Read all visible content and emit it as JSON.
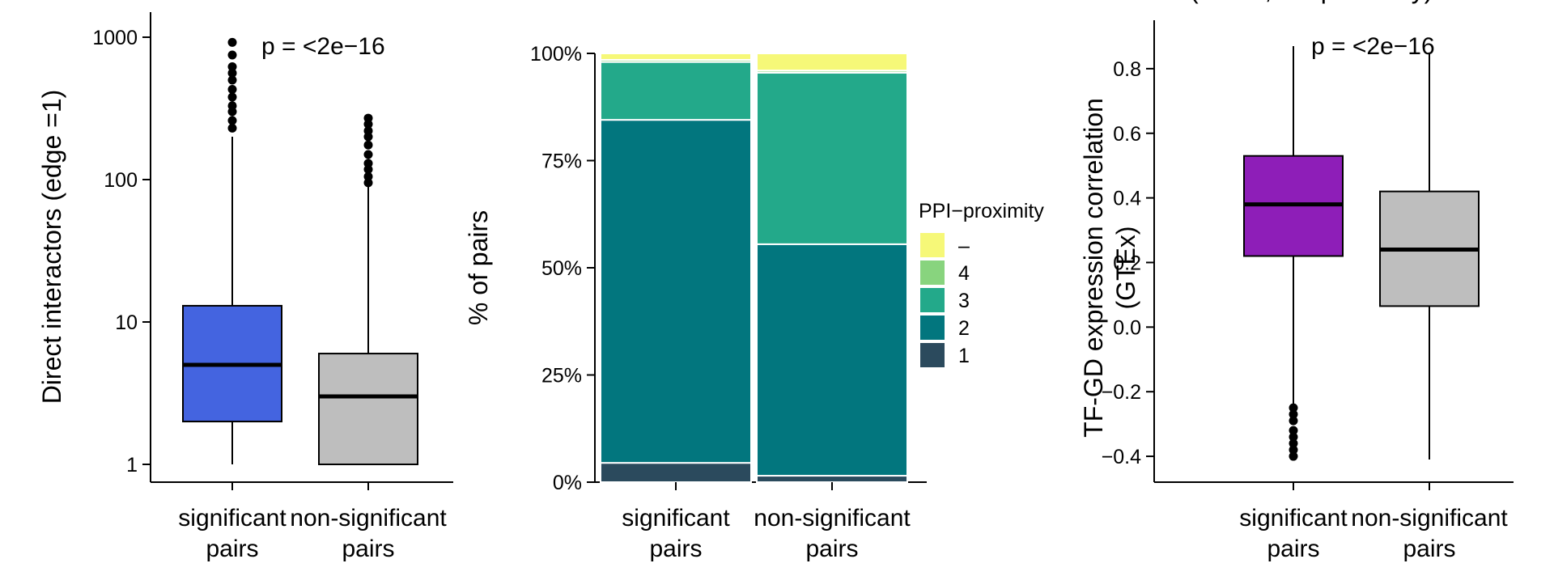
{
  "chart_data": [
    {
      "type": "box",
      "ylabel": "Direct interactors (edge =1)",
      "yscale": "log",
      "ylim": [
        0.75,
        1500
      ],
      "yticks": [
        1,
        10,
        100,
        1000
      ],
      "ytick_labels": [
        "1",
        "10",
        "100",
        "1000"
      ],
      "annotation": "p = <2e−16",
      "category_lines": [
        [
          "significant",
          "pairs"
        ],
        [
          "non-significant",
          "pairs"
        ]
      ],
      "boxes": [
        {
          "color": "#4464E0",
          "whisker_low": 1,
          "q1": 2,
          "median": 5,
          "q3": 13,
          "whisker_high": 200,
          "outliers": [
            230,
            260,
            300,
            330,
            380,
            430,
            500,
            560,
            620,
            750,
            920
          ]
        },
        {
          "color": "#BEBEBE",
          "whisker_low": 1,
          "q1": 1,
          "median": 3,
          "q3": 6,
          "whisker_high": 90,
          "outliers": [
            95,
            105,
            118,
            130,
            150,
            175,
            200,
            220,
            245,
            270
          ]
        }
      ]
    },
    {
      "type": "bar",
      "stacked": true,
      "ylabel": "% of pairs",
      "ylim": [
        0,
        100
      ],
      "yticks": [
        0,
        25,
        50,
        75,
        100
      ],
      "ytick_labels": [
        "0%",
        "25%",
        "50%",
        "75%",
        "100%"
      ],
      "category_lines": [
        [
          "significant",
          "pairs"
        ],
        [
          "non-significant",
          "pairs"
        ]
      ],
      "legend": {
        "title": "PPI−proximity",
        "placement": "right",
        "entries": [
          {
            "label": "–",
            "color": "#F6F878"
          },
          {
            "label": "4",
            "color": "#88D47E"
          },
          {
            "label": "3",
            "color": "#23A98A"
          },
          {
            "label": "2",
            "color": "#02767E"
          },
          {
            "label": "1",
            "color": "#2B4A5D"
          }
        ]
      },
      "series": [
        {
          "name": "1",
          "color": "#2B4A5D",
          "values": [
            4.5,
            1.5
          ]
        },
        {
          "name": "2",
          "color": "#02767E",
          "values": [
            80.0,
            54.0
          ]
        },
        {
          "name": "3",
          "color": "#23A98A",
          "values": [
            13.5,
            40.0
          ]
        },
        {
          "name": "4",
          "color": "#88D47E",
          "values": [
            0.5,
            0.5
          ]
        },
        {
          "name": "–",
          "color": "#F6F878",
          "values": [
            1.5,
            4.0
          ]
        }
      ]
    },
    {
      "type": "box",
      "ylabel_lines": [
        "TF-GD expression correlation",
        "(GTEx)"
      ],
      "yscale": "linear",
      "ylim": [
        -0.48,
        0.95
      ],
      "yticks": [
        -0.4,
        -0.2,
        0.0,
        0.2,
        0.4,
        0.6,
        0.8
      ],
      "ytick_labels": [
        "−0.4",
        "−0.2",
        "0.0",
        "0.2",
        "0.4",
        "0.6",
        "0.8"
      ],
      "annotation": "p = <2e−16",
      "partial_top_text": "(GTEx, full-proximity)",
      "category_lines": [
        [
          "significant",
          "pairs"
        ],
        [
          "non-significant",
          "pairs"
        ]
      ],
      "boxes": [
        {
          "color": "#8E1EB8",
          "whisker_low": -0.24,
          "q1": 0.22,
          "median": 0.38,
          "q3": 0.53,
          "whisker_high": 0.87,
          "outliers": [
            -0.25,
            -0.27,
            -0.29,
            -0.32,
            -0.34,
            -0.36,
            -0.38,
            -0.4
          ]
        },
        {
          "color": "#BEBEBE",
          "whisker_low": -0.41,
          "q1": 0.065,
          "median": 0.24,
          "q3": 0.42,
          "whisker_high": 0.85,
          "outliers": []
        }
      ]
    }
  ]
}
